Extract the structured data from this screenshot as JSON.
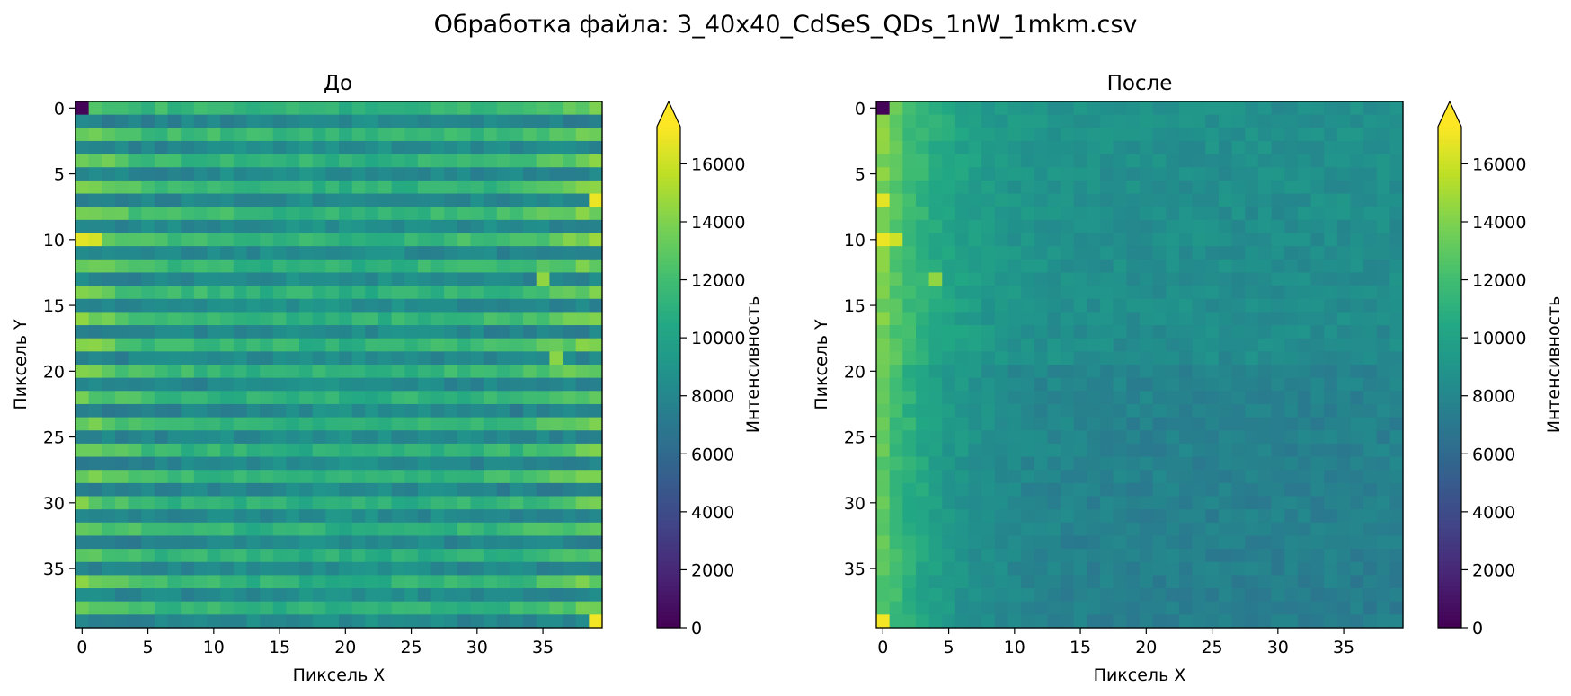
{
  "figure": {
    "suptitle": "Обработка файла: 3_40x40_CdSeS_QDs_1nW_1mkm.csv"
  },
  "chart_data": [
    {
      "type": "heatmap",
      "title": "До",
      "xlabel": "Пиксель X",
      "ylabel": "Пиксель Y",
      "grid_size": [
        40,
        40
      ],
      "x_ticks": [
        0,
        5,
        10,
        15,
        20,
        25,
        30,
        35
      ],
      "y_ticks": [
        0,
        5,
        10,
        15,
        20,
        25,
        30,
        35
      ],
      "y_axis_inverted": true,
      "colorbar": {
        "label": "Интенсивность",
        "colormap": "viridis",
        "range": [
          0,
          17500
        ],
        "extend": "max",
        "ticks": [
          0,
          2000,
          4000,
          6000,
          8000,
          10000,
          12000,
          14000,
          16000
        ]
      },
      "pattern": "horizontal_stripes",
      "row_offsets": [
        2200,
        -2500,
        2600,
        -2100,
        2400,
        -2200,
        2500,
        -2300,
        2700,
        -2000,
        2800,
        -2300,
        2400,
        -2200,
        2300,
        -2100,
        2500,
        -2400,
        2600,
        -2200,
        2400,
        -2300,
        2200,
        -2500,
        2300,
        -2200,
        2100,
        -2300,
        2400,
        -2500,
        2100,
        -2300,
        2200,
        -2400,
        2000,
        -2200,
        2300,
        -2100,
        2200,
        -2400
      ],
      "hot_pixels": [
        {
          "x": 0,
          "y": 0,
          "value": 200
        },
        {
          "x": 39,
          "y": 7,
          "value": 17000
        },
        {
          "x": 0,
          "y": 10,
          "value": 16800
        },
        {
          "x": 1,
          "y": 10,
          "value": 16400
        },
        {
          "x": 35,
          "y": 13,
          "value": 14600
        },
        {
          "x": 36,
          "y": 19,
          "value": 14400
        },
        {
          "x": 39,
          "y": 39,
          "value": 17200
        }
      ]
    },
    {
      "type": "heatmap",
      "title": "После",
      "xlabel": "Пиксель X",
      "ylabel": "Пиксель Y",
      "grid_size": [
        40,
        40
      ],
      "x_ticks": [
        0,
        5,
        10,
        15,
        20,
        25,
        30,
        35
      ],
      "y_ticks": [
        0,
        5,
        10,
        15,
        20,
        25,
        30,
        35
      ],
      "y_axis_inverted": true,
      "colorbar": {
        "label": "Интенсивность",
        "colormap": "viridis",
        "range": [
          0,
          17500
        ],
        "extend": "max",
        "ticks": [
          0,
          2000,
          4000,
          6000,
          8000,
          10000,
          12000,
          14000,
          16000
        ]
      },
      "pattern": "smooth",
      "hot_pixels": [
        {
          "x": 0,
          "y": 0,
          "value": 200
        },
        {
          "x": 0,
          "y": 7,
          "value": 16800
        },
        {
          "x": 0,
          "y": 10,
          "value": 17000
        },
        {
          "x": 1,
          "y": 10,
          "value": 16200
        },
        {
          "x": 4,
          "y": 13,
          "value": 14600
        },
        {
          "x": 0,
          "y": 39,
          "value": 17200
        }
      ]
    }
  ]
}
